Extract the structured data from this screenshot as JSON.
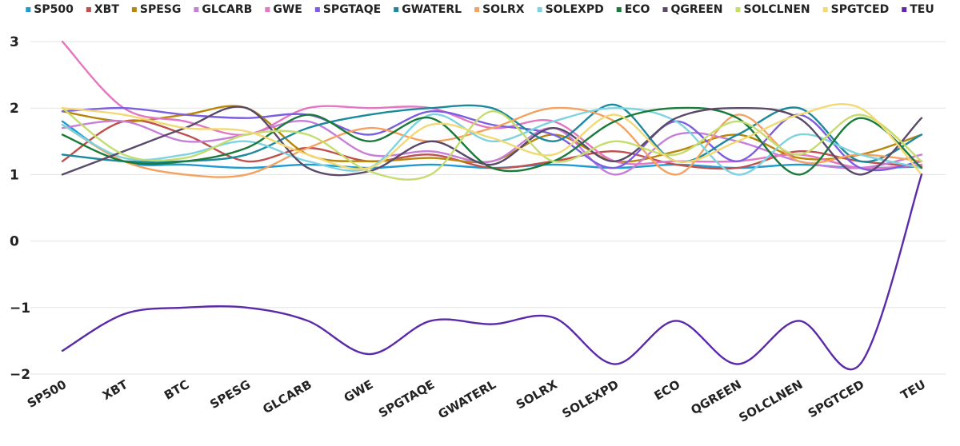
{
  "chart_data": {
    "type": "line",
    "title": "",
    "xlabel": "",
    "ylabel": "",
    "ylim": [
      -2,
      3
    ],
    "yticks": [
      "3",
      "2",
      "1",
      "0",
      "−1",
      "−2"
    ],
    "grid": "horizontal",
    "legend_position": "top",
    "categories": [
      "SP500",
      "XBT",
      "BTC",
      "SPESG",
      "GLCARB",
      "GWE",
      "SPGTAQE",
      "GWATERL",
      "SOLRX",
      "SOLEXPD",
      "ECO",
      "QGREEN",
      "SOLCLNEN",
      "SPGTCED",
      "TEU"
    ],
    "series": [
      {
        "name": "SP500",
        "color": "#1f9bd1",
        "values": [
          1.8,
          1.2,
          1.15,
          1.1,
          1.15,
          1.1,
          1.15,
          1.1,
          1.15,
          1.1,
          1.15,
          1.1,
          1.15,
          1.1,
          1.12
        ]
      },
      {
        "name": "XBT",
        "color": "#c0504d",
        "values": [
          1.2,
          1.8,
          1.6,
          1.2,
          1.4,
          1.2,
          1.3,
          1.1,
          1.2,
          1.35,
          1.15,
          1.1,
          1.35,
          1.2,
          1.12
        ]
      },
      {
        "name": "SPESG",
        "color": "#b8860b",
        "values": [
          1.95,
          1.8,
          1.9,
          2.0,
          1.3,
          1.2,
          1.25,
          1.2,
          1.6,
          1.2,
          1.35,
          1.6,
          1.25,
          1.3,
          1.6
        ]
      },
      {
        "name": "GLCARB",
        "color": "#c77ed8",
        "values": [
          1.7,
          1.8,
          1.5,
          1.6,
          1.8,
          1.3,
          1.35,
          1.2,
          1.7,
          1.0,
          1.6,
          1.5,
          1.2,
          1.1,
          1.3
        ]
      },
      {
        "name": "GWE",
        "color": "#e377c2",
        "values": [
          3.0,
          2.0,
          1.8,
          1.6,
          2.0,
          2.0,
          2.0,
          1.7,
          1.8,
          1.2,
          1.2,
          1.2,
          1.3,
          1.1,
          1.15
        ]
      },
      {
        "name": "SPGTAQE",
        "color": "#7b5fe0",
        "values": [
          1.95,
          2.0,
          1.9,
          1.85,
          1.9,
          1.6,
          1.95,
          1.75,
          1.6,
          1.1,
          1.8,
          1.2,
          1.9,
          1.1,
          1.2
        ]
      },
      {
        "name": "GWATERL",
        "color": "#1a8a9c",
        "values": [
          1.3,
          1.2,
          1.2,
          1.3,
          1.7,
          1.9,
          2.0,
          2.0,
          1.5,
          2.05,
          1.2,
          1.6,
          2.0,
          1.2,
          1.6
        ]
      },
      {
        "name": "SOLRX",
        "color": "#f4a261",
        "values": [
          1.75,
          1.2,
          1.0,
          1.0,
          1.4,
          1.7,
          1.5,
          1.7,
          2.0,
          1.8,
          1.0,
          1.9,
          1.2,
          1.3,
          1.2
        ]
      },
      {
        "name": "SOLEXPD",
        "color": "#7dd3e0",
        "values": [
          1.75,
          1.25,
          1.3,
          1.5,
          1.2,
          1.1,
          1.9,
          1.5,
          1.8,
          2.0,
          1.8,
          1.0,
          1.6,
          1.3,
          1.1
        ]
      },
      {
        "name": "ECO",
        "color": "#1a7a3a",
        "values": [
          1.6,
          1.2,
          1.2,
          1.4,
          1.9,
          1.5,
          1.85,
          1.1,
          1.2,
          1.8,
          2.0,
          1.85,
          1.0,
          1.85,
          1.1
        ]
      },
      {
        "name": "QGREEN",
        "color": "#5a4a6a",
        "values": [
          1.0,
          1.35,
          1.7,
          2.0,
          1.1,
          1.05,
          1.5,
          1.15,
          1.7,
          1.2,
          1.85,
          2.0,
          1.85,
          1.0,
          1.85
        ]
      },
      {
        "name": "SOLCLNEN",
        "color": "#c5dc6f",
        "values": [
          2.0,
          1.3,
          1.25,
          1.6,
          1.6,
          1.05,
          1.0,
          1.95,
          1.2,
          1.5,
          1.3,
          1.8,
          1.3,
          1.9,
          1.2
        ]
      },
      {
        "name": "SPGTCED",
        "color": "#f2d974",
        "values": [
          2.0,
          1.9,
          1.7,
          1.65,
          1.3,
          1.1,
          1.75,
          1.55,
          1.3,
          1.9,
          1.2,
          1.5,
          1.9,
          2.0,
          1.0
        ]
      },
      {
        "name": "TEU",
        "color": "#5b2aa8",
        "values": [
          -1.65,
          -1.1,
          -1.0,
          -1.0,
          -1.2,
          -1.7,
          -1.2,
          -1.25,
          -1.15,
          -1.85,
          -1.2,
          -1.85,
          -1.2,
          -1.85,
          1.0
        ]
      }
    ]
  }
}
